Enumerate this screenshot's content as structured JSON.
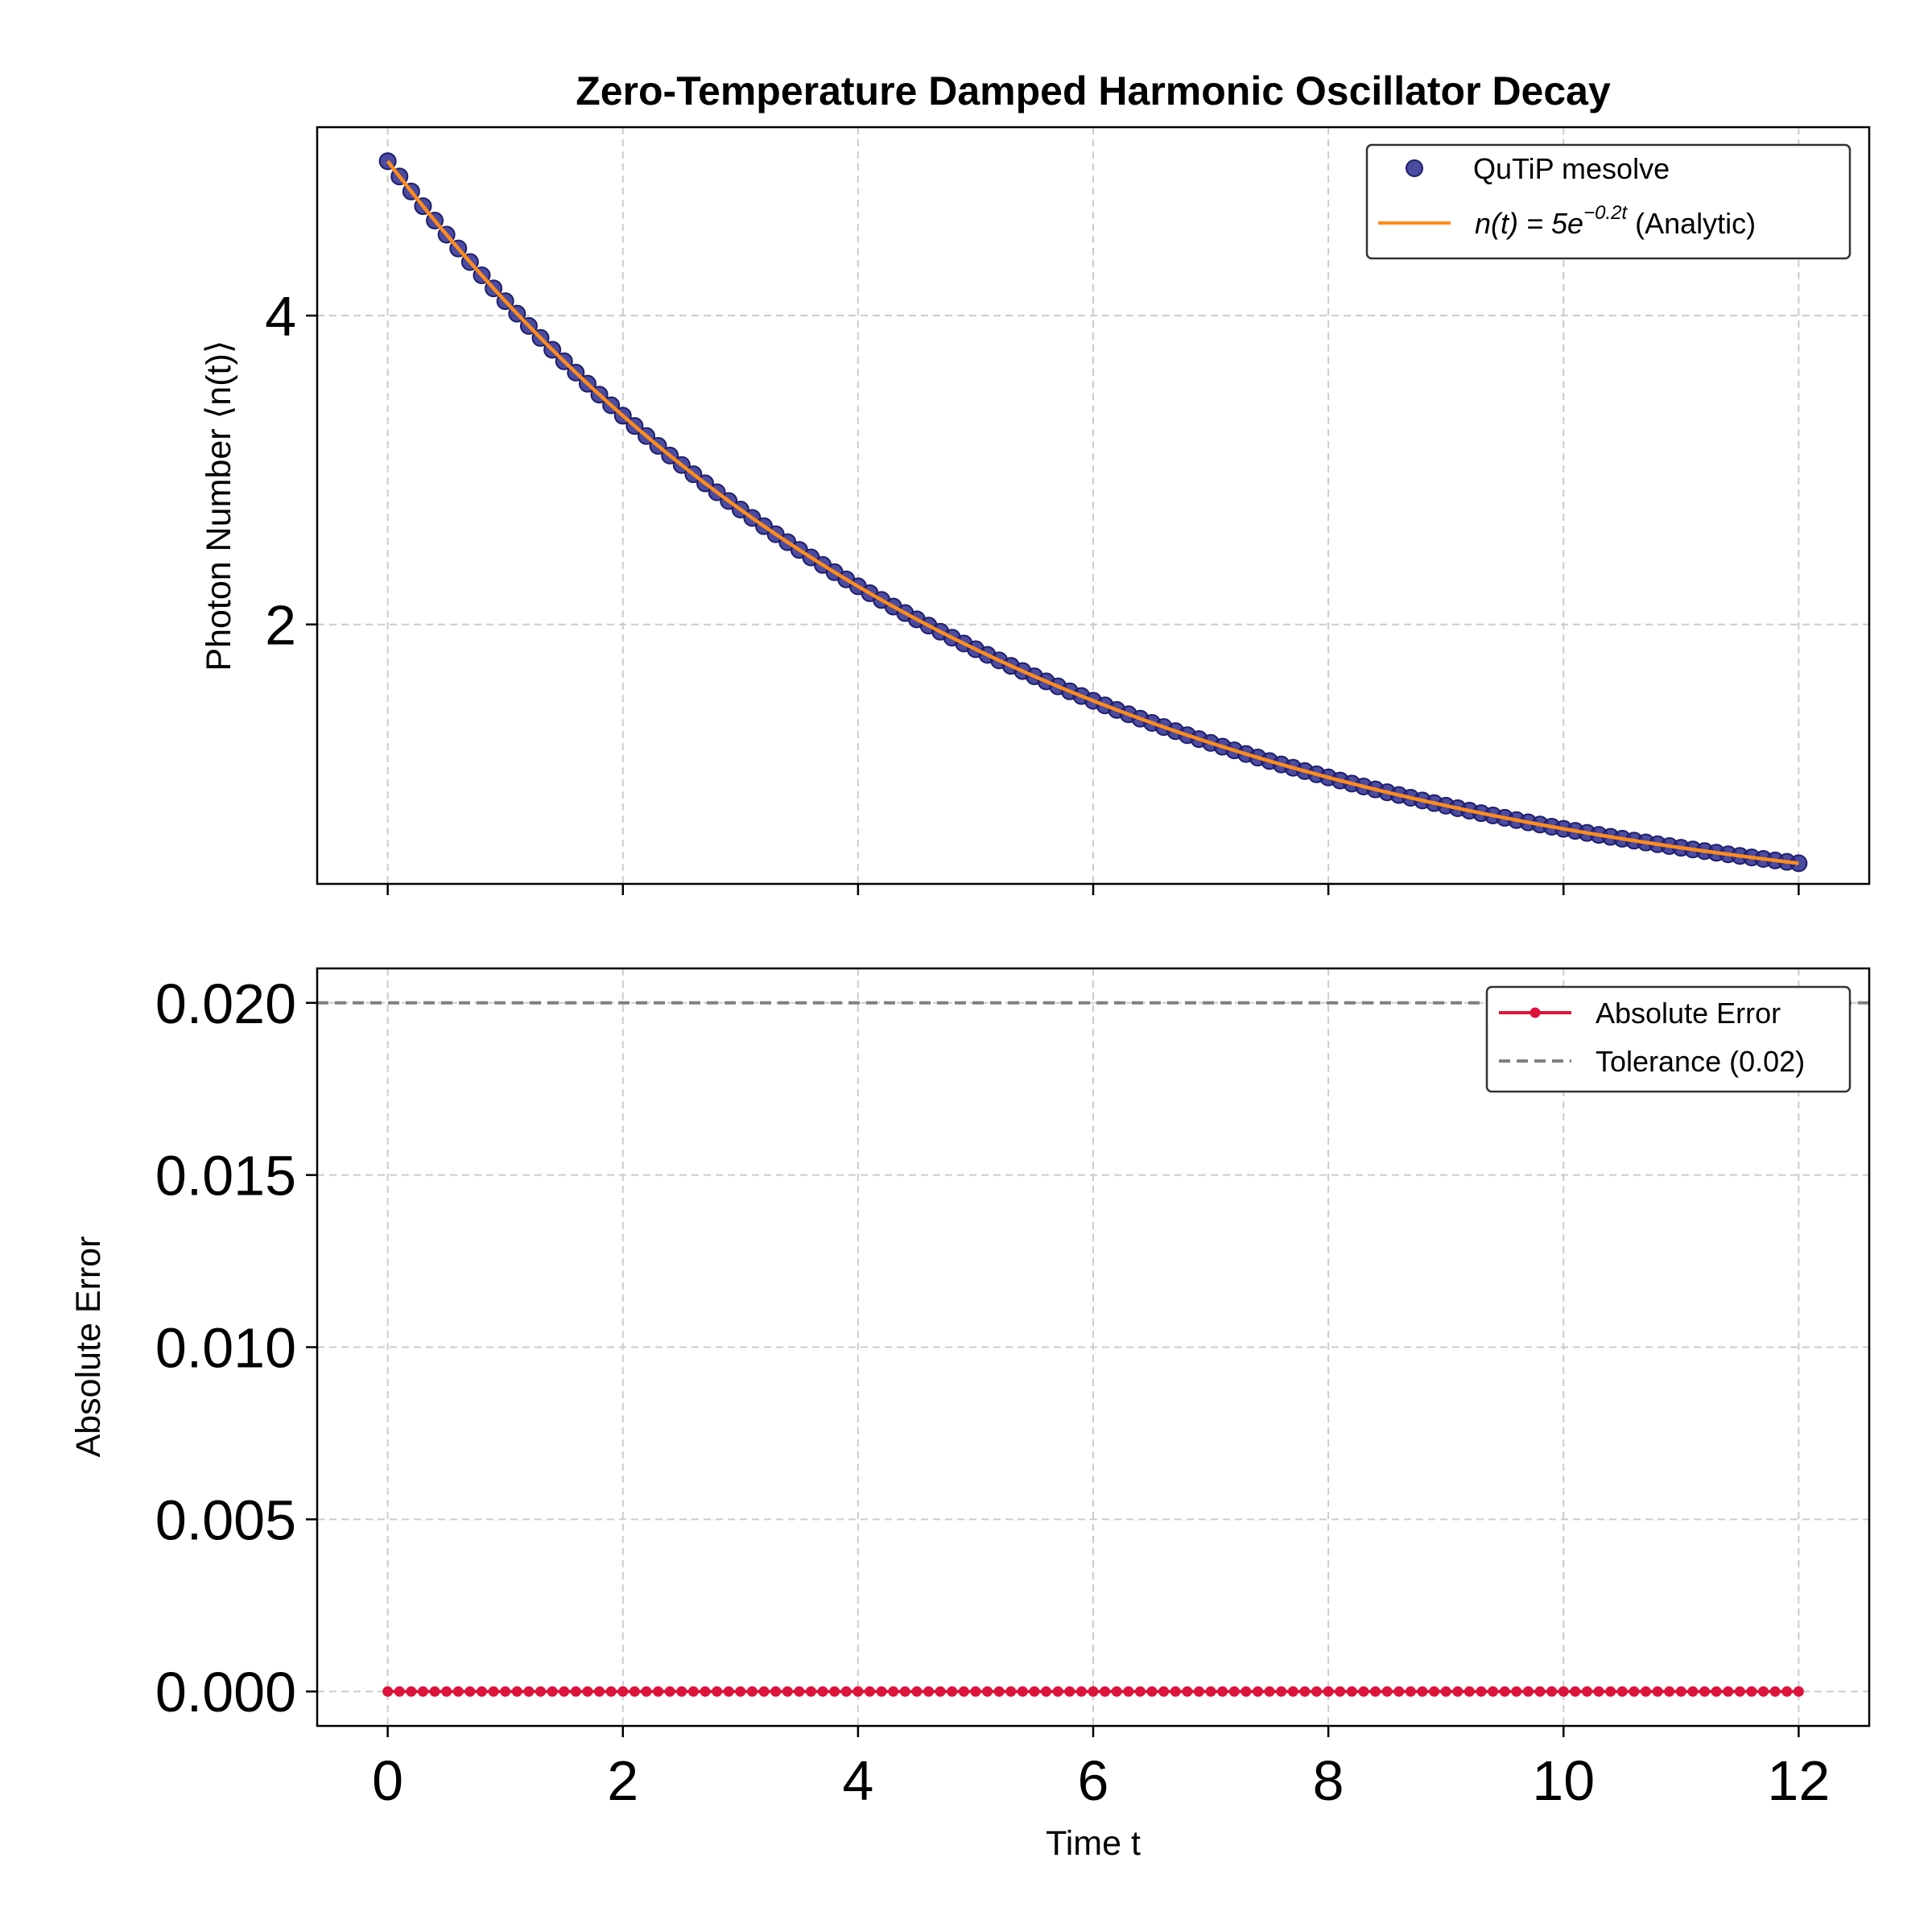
{
  "chart_data": [
    {
      "type": "line",
      "title": "Zero-Temperature Damped Harmonic Oscillator Decay",
      "xlabel": "",
      "ylabel": "Photon Number ⟨n(t)⟩",
      "xlim": [
        -0.6,
        12.6
      ],
      "ylim": [
        0.32,
        5.22
      ],
      "xticks": [
        0,
        2,
        4,
        6,
        8,
        10,
        12
      ],
      "yticks": [
        2,
        4
      ],
      "ytick_labels": [
        "2",
        "4"
      ],
      "grid": true,
      "legend_position": "top-right",
      "series": [
        {
          "name": "QuTiP mesolve",
          "style": "markers",
          "color": "#2b2b8f",
          "x_start": 0,
          "x_end": 12,
          "n_points": 121,
          "formula": "n(t) = 5*exp(-0.2*t)",
          "y_samples": {
            "0": 5.0,
            "2": 3.352,
            "4": 2.247,
            "6": 1.506,
            "8": 1.009,
            "10": 0.677,
            "12": 0.454
          }
        },
        {
          "name_prefix": "n(t) = 5e",
          "name_exponent": "−0.2t",
          "name_suffix": " (Analytic)",
          "style": "line",
          "color": "#ff8c1a",
          "x_start": 0,
          "x_end": 12,
          "formula": "n(t) = 5*exp(-0.2*t)"
        }
      ]
    },
    {
      "type": "line",
      "title": "",
      "xlabel": "Time t",
      "ylabel": "Absolute Error",
      "xlim": [
        -0.6,
        12.6
      ],
      "ylim": [
        -0.001,
        0.021
      ],
      "xticks": [
        0,
        2,
        4,
        6,
        8,
        10,
        12
      ],
      "xtick_labels": [
        "0",
        "2",
        "4",
        "6",
        "8",
        "10",
        "12"
      ],
      "yticks": [
        0.0,
        0.005,
        0.01,
        0.015,
        0.02
      ],
      "ytick_labels": [
        "0.000",
        "0.005",
        "0.010",
        "0.015",
        "0.020"
      ],
      "grid": true,
      "legend_position": "top-right",
      "series": [
        {
          "name": "Absolute Error",
          "style": "line-markers",
          "color": "#dc143c",
          "x_start": 0,
          "x_end": 12,
          "n_points": 121,
          "value": 0.0
        },
        {
          "name": "Tolerance (0.02)",
          "style": "dashed-hline",
          "color": "#808080",
          "value": 0.02
        }
      ]
    }
  ]
}
